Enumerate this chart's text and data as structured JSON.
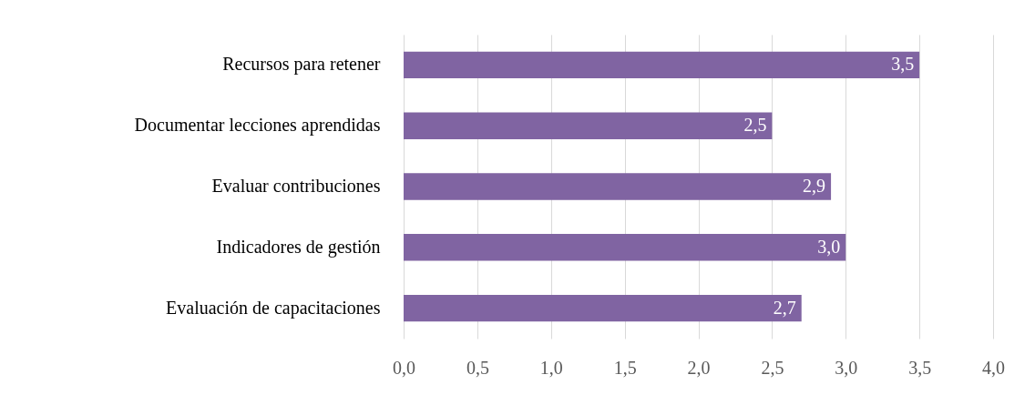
{
  "chart_data": {
    "type": "bar",
    "orientation": "horizontal",
    "categories": [
      "Recursos para retener",
      "Documentar lecciones aprendidas",
      "Evaluar contribuciones",
      "Indicadores de gestión",
      "Evaluación de capacitaciones"
    ],
    "values": [
      3.5,
      2.5,
      2.9,
      3.0,
      2.7
    ],
    "value_labels": [
      "3,5",
      "2,5",
      "2,9",
      "3,0",
      "2,7"
    ],
    "color": "#8064a2",
    "xlim": [
      0,
      4
    ],
    "xticks": [
      {
        "value": 0,
        "label": "0,0"
      },
      {
        "value": 0.5,
        "label": "0,5"
      },
      {
        "value": 1,
        "label": "1,0"
      },
      {
        "value": 1.5,
        "label": "1,5"
      },
      {
        "value": 2,
        "label": "2,0"
      },
      {
        "value": 2.5,
        "label": "2,5"
      },
      {
        "value": 3,
        "label": "3,0"
      },
      {
        "value": 3.5,
        "label": "3,5"
      },
      {
        "value": 4,
        "label": "4,0"
      }
    ],
    "grid": "x"
  }
}
